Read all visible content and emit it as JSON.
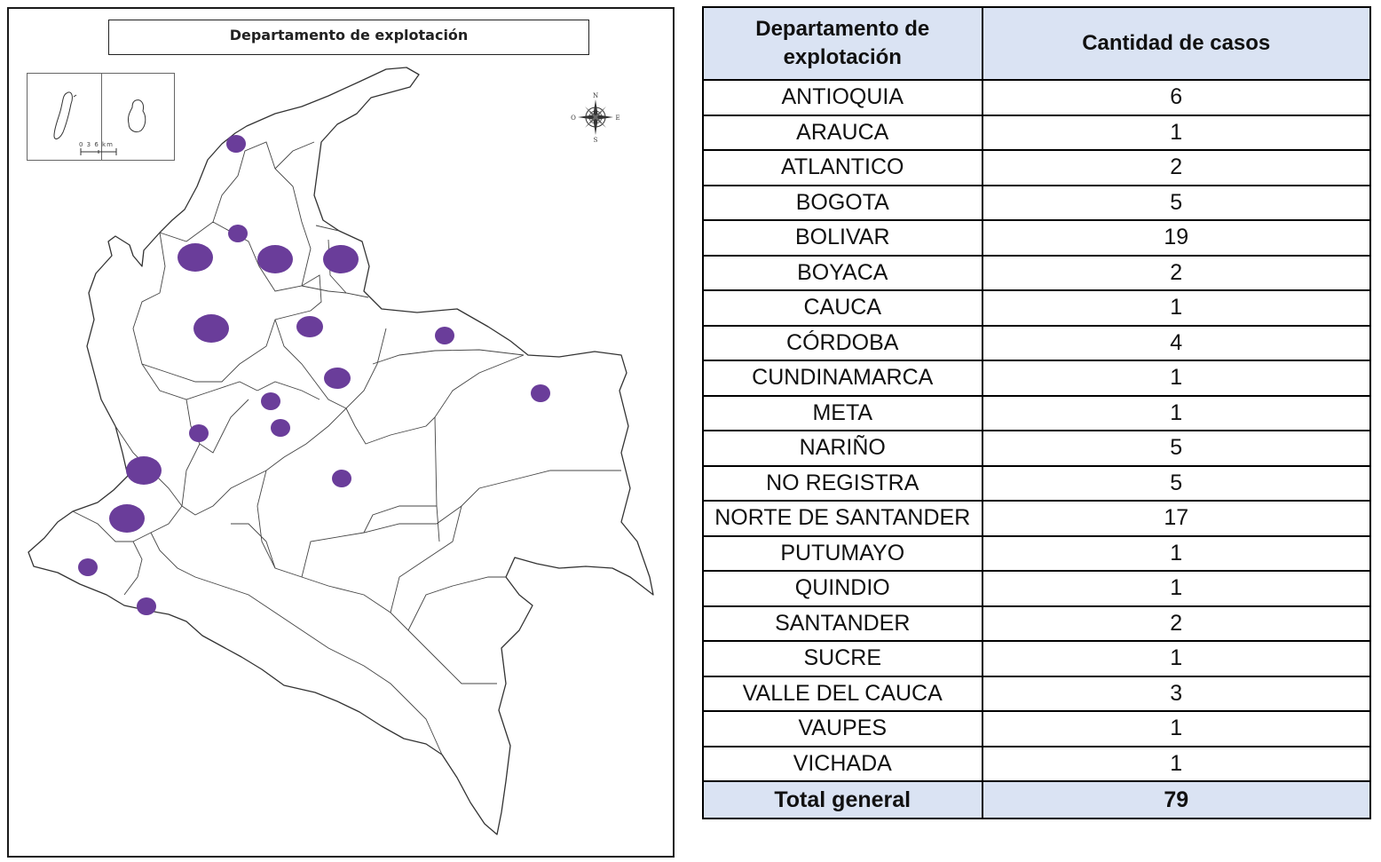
{
  "map": {
    "title": "Departamento de explotación",
    "scale_label": "0  3  6 km",
    "compass": {
      "n": "N",
      "s": "S",
      "e": "E",
      "w": "O"
    },
    "marker_color": "#6a3d9a",
    "case_markers": [
      {
        "size": "small"
      },
      {
        "size": "small"
      },
      {
        "size": "large"
      },
      {
        "size": "large"
      },
      {
        "size": "large"
      },
      {
        "size": "large"
      },
      {
        "size": "medium"
      },
      {
        "size": "small"
      },
      {
        "size": "medium"
      },
      {
        "size": "small"
      },
      {
        "size": "small"
      },
      {
        "size": "small"
      },
      {
        "size": "small"
      },
      {
        "size": "large"
      },
      {
        "size": "small"
      },
      {
        "size": "large"
      },
      {
        "size": "small"
      },
      {
        "size": "small"
      }
    ]
  },
  "table": {
    "header_bg": "#dae3f3",
    "headers": [
      "Departamento de explotación",
      "Cantidad de casos"
    ],
    "rows": [
      {
        "department": "ANTIOQUIA",
        "cases": "6"
      },
      {
        "department": "ARAUCA",
        "cases": "1"
      },
      {
        "department": "ATLANTICO",
        "cases": "2"
      },
      {
        "department": "BOGOTA",
        "cases": "5"
      },
      {
        "department": "BOLIVAR",
        "cases": "19"
      },
      {
        "department": "BOYACA",
        "cases": "2"
      },
      {
        "department": "CAUCA",
        "cases": "1"
      },
      {
        "department": "CÓRDOBA",
        "cases": "4"
      },
      {
        "department": "CUNDINAMARCA",
        "cases": "1"
      },
      {
        "department": "META",
        "cases": "1"
      },
      {
        "department": "NARIÑO",
        "cases": "5"
      },
      {
        "department": "NO REGISTRA",
        "cases": "5"
      },
      {
        "department": "NORTE DE SANTANDER",
        "cases": "17"
      },
      {
        "department": "PUTUMAYO",
        "cases": "1"
      },
      {
        "department": "QUINDIO",
        "cases": "1"
      },
      {
        "department": "SANTANDER",
        "cases": "2"
      },
      {
        "department": "SUCRE",
        "cases": "1"
      },
      {
        "department": "VALLE DEL CAUCA",
        "cases": "3"
      },
      {
        "department": "VAUPES",
        "cases": "1"
      },
      {
        "department": "VICHADA",
        "cases": "1"
      }
    ],
    "total": {
      "label": "Total general",
      "value": "79"
    }
  }
}
